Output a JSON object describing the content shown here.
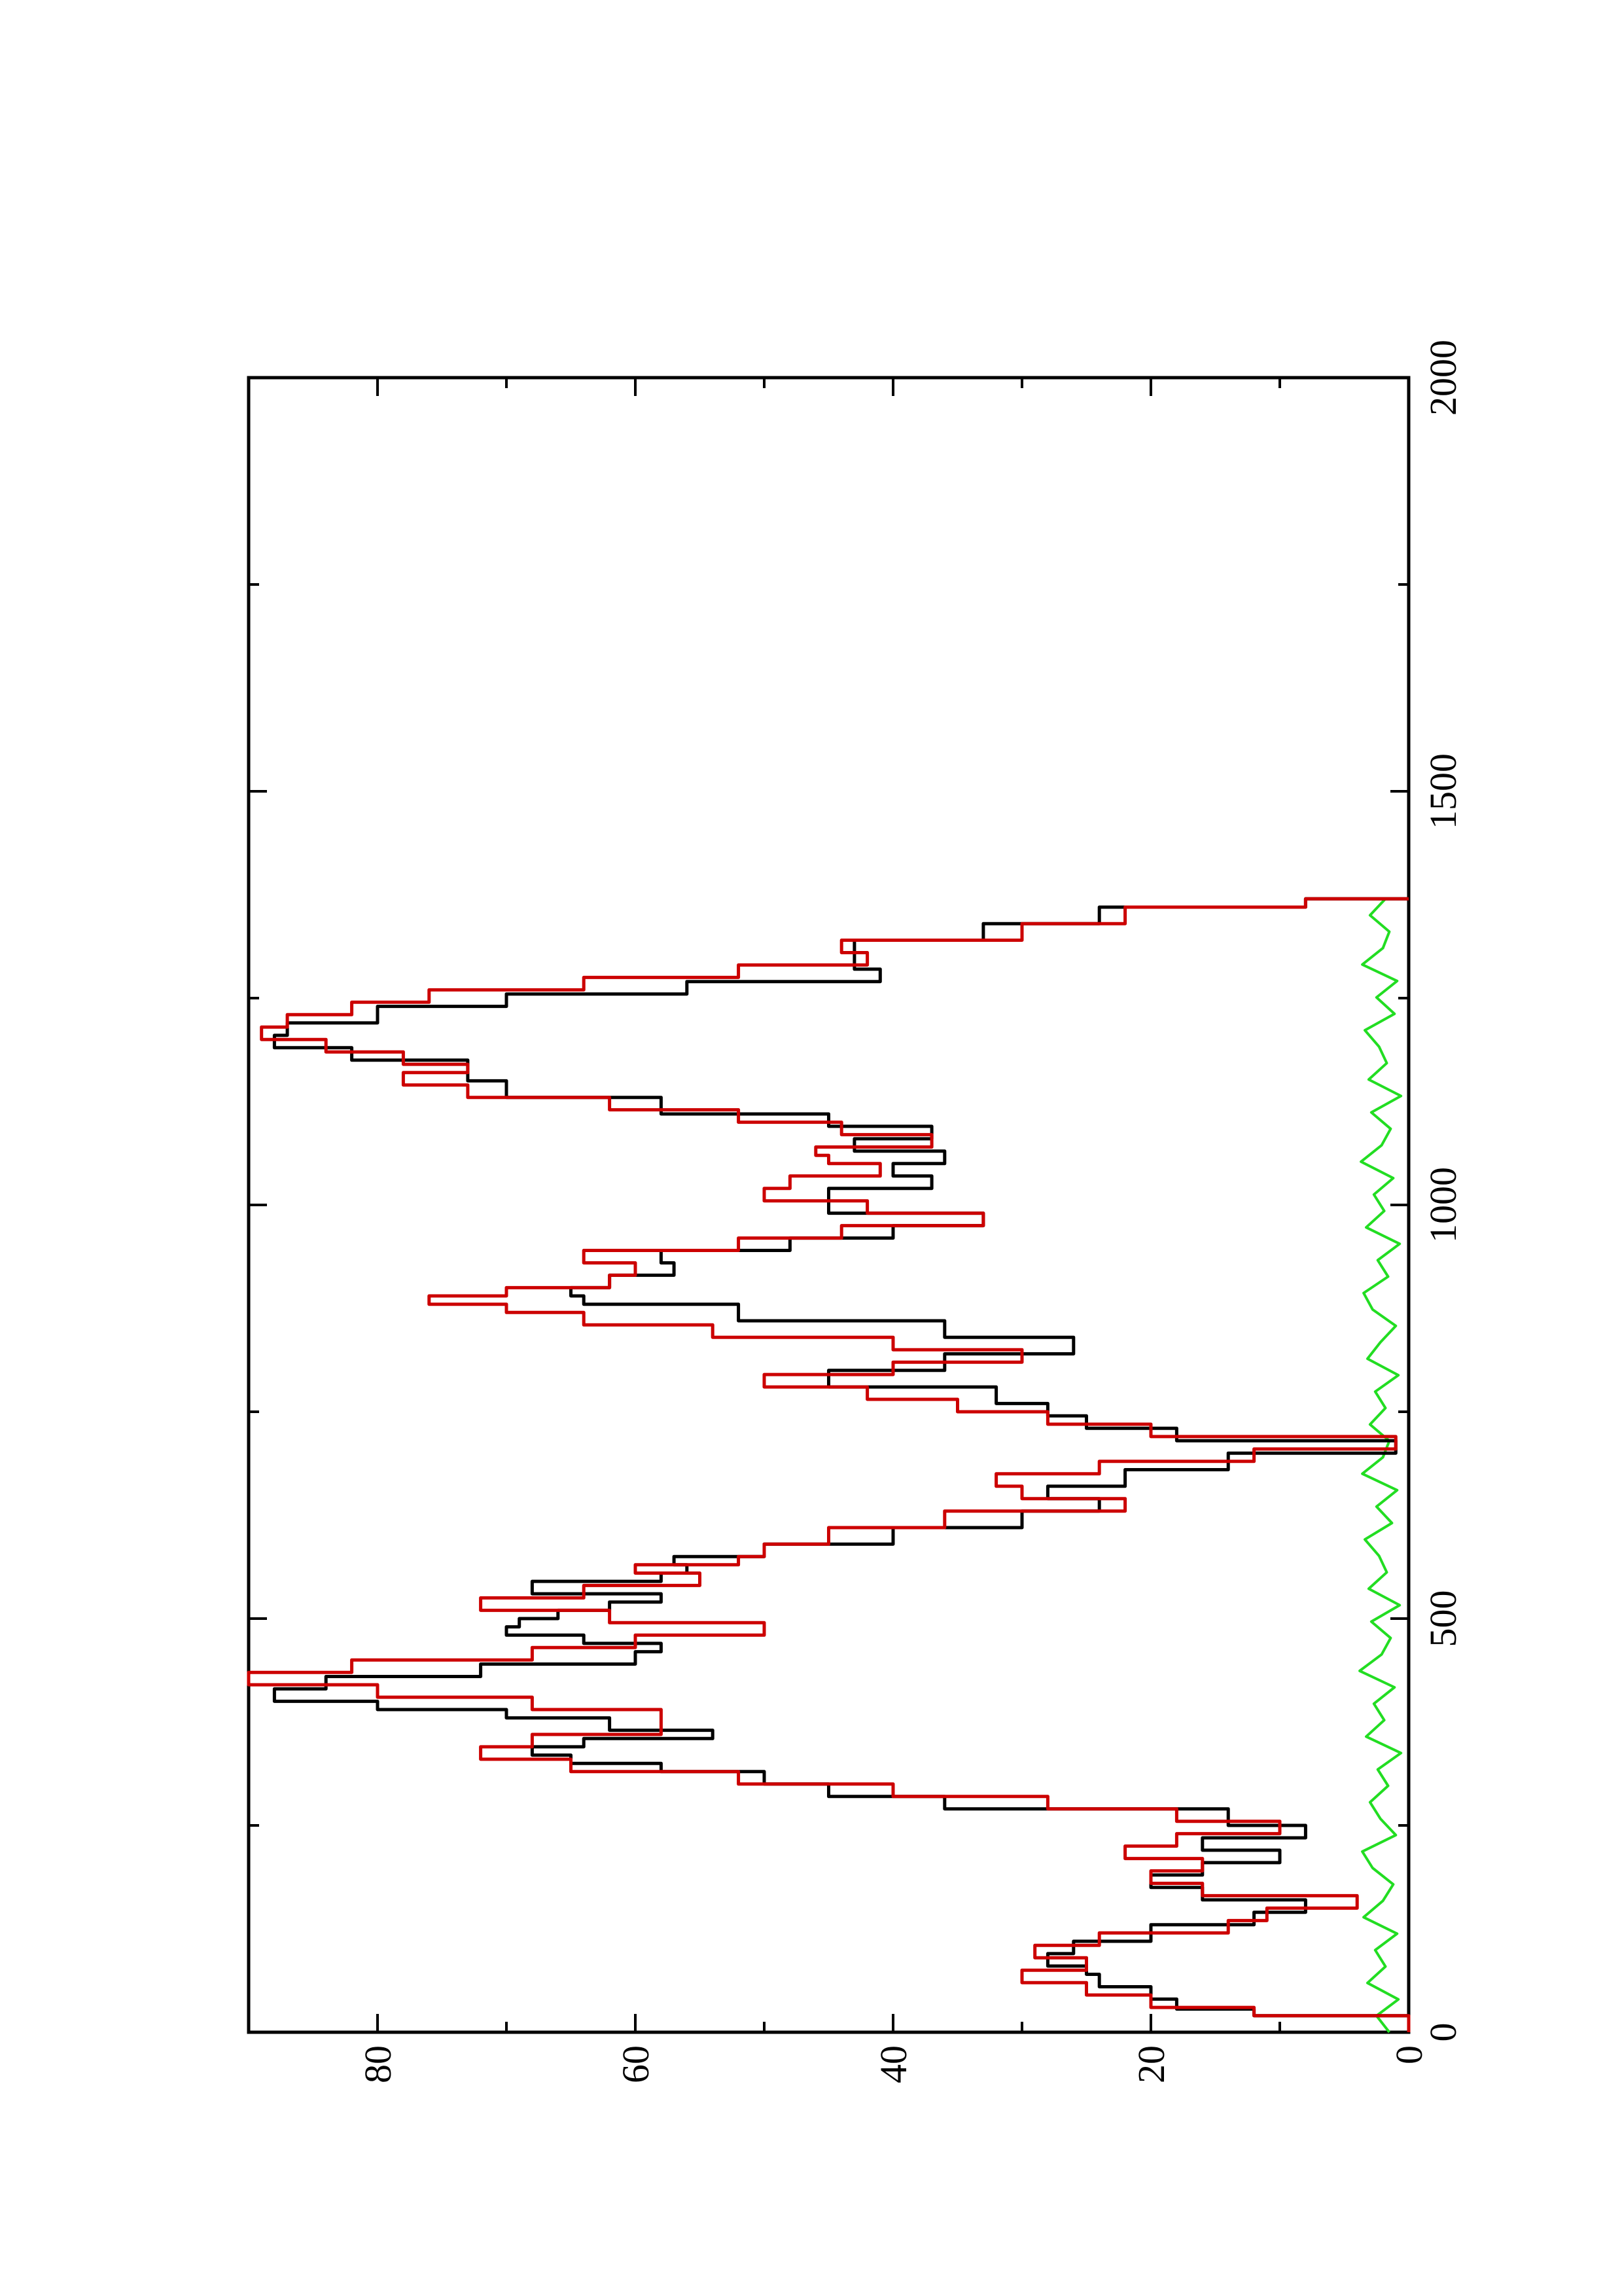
{
  "chart_data": {
    "type": "line",
    "orientation": "rotated-90-ccw",
    "title": "",
    "xlabel": "",
    "ylabel": "",
    "xlim": [
      0,
      2000
    ],
    "ylim": [
      0,
      90
    ],
    "x_ticks": [
      0,
      500,
      1000,
      1500,
      2000
    ],
    "x_tick_labels": [
      "0",
      "500",
      "1000",
      "1500",
      "2000"
    ],
    "y_ticks": [
      0,
      20,
      40,
      60,
      80
    ],
    "y_tick_labels": [
      "0",
      "20",
      "40",
      "60",
      "80"
    ],
    "grid": false,
    "legend": "none",
    "series": [
      {
        "color": "#000000",
        "x": [
          0,
          20,
          28,
          40,
          55,
          70,
          80,
          95,
          110,
          130,
          145,
          160,
          175,
          190,
          205,
          220,
          235,
          250,
          270,
          285,
          300,
          315,
          325,
          335,
          345,
          355,
          365,
          380,
          390,
          400,
          415,
          430,
          445,
          460,
          470,
          480,
          490,
          500,
          510,
          520,
          530,
          545,
          555,
          565,
          575,
          590,
          610,
          630,
          645,
          660,
          680,
          700,
          715,
          730,
          745,
          760,
          780,
          800,
          820,
          840,
          860,
          880,
          890,
          900,
          915,
          930,
          945,
          960,
          975,
          990,
          1005,
          1020,
          1035,
          1050,
          1065,
          1080,
          1095,
          1110,
          1130,
          1150,
          1160,
          1175,
          1190,
          1205,
          1220,
          1240,
          1255,
          1270,
          1285,
          1300,
          1320,
          1340,
          1360,
          1370
        ],
        "y": [
          0,
          12,
          18,
          20,
          24,
          25,
          28,
          26,
          20,
          12,
          8,
          16,
          20,
          16,
          10,
          16,
          8,
          14,
          36,
          45,
          50,
          58,
          65,
          68,
          64,
          54,
          62,
          70,
          80,
          88,
          84,
          72,
          60,
          58,
          64,
          70,
          69,
          66,
          62,
          58,
          68,
          58,
          56,
          57,
          50,
          40,
          30,
          24,
          28,
          22,
          14,
          1,
          18,
          25,
          28,
          32,
          45,
          36,
          26,
          36,
          52,
          64,
          65,
          62,
          57,
          58,
          48,
          40,
          33,
          45,
          45,
          37,
          40,
          36,
          43,
          37,
          45,
          58,
          70,
          73,
          73,
          82,
          88,
          87,
          80,
          70,
          56,
          41,
          43,
          43,
          33,
          24,
          8,
          0
        ]
      },
      {
        "color": "#cc0000",
        "x": [
          0,
          20,
          30,
          45,
          60,
          75,
          90,
          105,
          120,
          135,
          150,
          165,
          180,
          195,
          210,
          225,
          240,
          255,
          270,
          285,
          300,
          315,
          330,
          345,
          360,
          375,
          390,
          405,
          420,
          435,
          450,
          465,
          480,
          495,
          510,
          525,
          540,
          555,
          565,
          575,
          590,
          610,
          630,
          645,
          660,
          675,
          690,
          705,
          720,
          735,
          750,
          765,
          780,
          795,
          810,
          825,
          840,
          855,
          870,
          880,
          890,
          900,
          915,
          930,
          945,
          960,
          975,
          990,
          1005,
          1020,
          1035,
          1050,
          1060,
          1070,
          1085,
          1100,
          1115,
          1130,
          1145,
          1160,
          1170,
          1185,
          1200,
          1215,
          1230,
          1245,
          1260,
          1275,
          1290,
          1305,
          1320,
          1340,
          1360,
          1370
        ],
        "y": [
          0,
          12,
          20,
          25,
          30,
          25,
          29,
          24,
          14,
          11,
          4,
          16,
          20,
          16,
          22,
          18,
          10,
          18,
          28,
          40,
          52,
          65,
          72,
          68,
          58,
          58,
          68,
          80,
          90,
          82,
          68,
          60,
          50,
          62,
          72,
          64,
          55,
          60,
          52,
          50,
          45,
          36,
          22,
          30,
          32,
          24,
          12,
          1,
          20,
          28,
          35,
          42,
          50,
          40,
          30,
          40,
          54,
          64,
          70,
          76,
          70,
          62,
          60,
          64,
          52,
          44,
          33,
          42,
          50,
          48,
          41,
          45,
          46,
          37,
          44,
          52,
          62,
          73,
          78,
          73,
          78,
          84,
          89,
          87,
          82,
          76,
          64,
          52,
          42,
          44,
          30,
          22,
          8,
          0
        ]
      },
      {
        "color": "#22dd22",
        "x_start": 0,
        "x_end": 1370,
        "y_min": 0,
        "y_max": 4,
        "note_values": "noise band near zero",
        "y": [
          1.5,
          2.5,
          0.8,
          3.2,
          1.8,
          2.6,
          0.9,
          3.5,
          2.0,
          1.2,
          2.8,
          3.6,
          1.0,
          2.2,
          3.0,
          1.6,
          2.4,
          0.6,
          3.3,
          1.9,
          2.7,
          1.1,
          3.8,
          2.1,
          1.4,
          2.9,
          0.7,
          3.1,
          1.7,
          2.3,
          3.4,
          1.3,
          2.5,
          0.9,
          3.6,
          2.0,
          1.5,
          3.0,
          1.8,
          2.6,
          0.8,
          3.2,
          2.2,
          1.0,
          2.8,
          3.5,
          1.6,
          2.4,
          0.7,
          3.3,
          1.9,
          2.7,
          1.2,
          3.7,
          2.1,
          1.4,
          2.9,
          0.6,
          3.1,
          1.7,
          2.3,
          3.4,
          1.1,
          2.5,
          0.9,
          3.6,
          2.0,
          1.5,
          3.0,
          1.8
        ]
      }
    ]
  }
}
